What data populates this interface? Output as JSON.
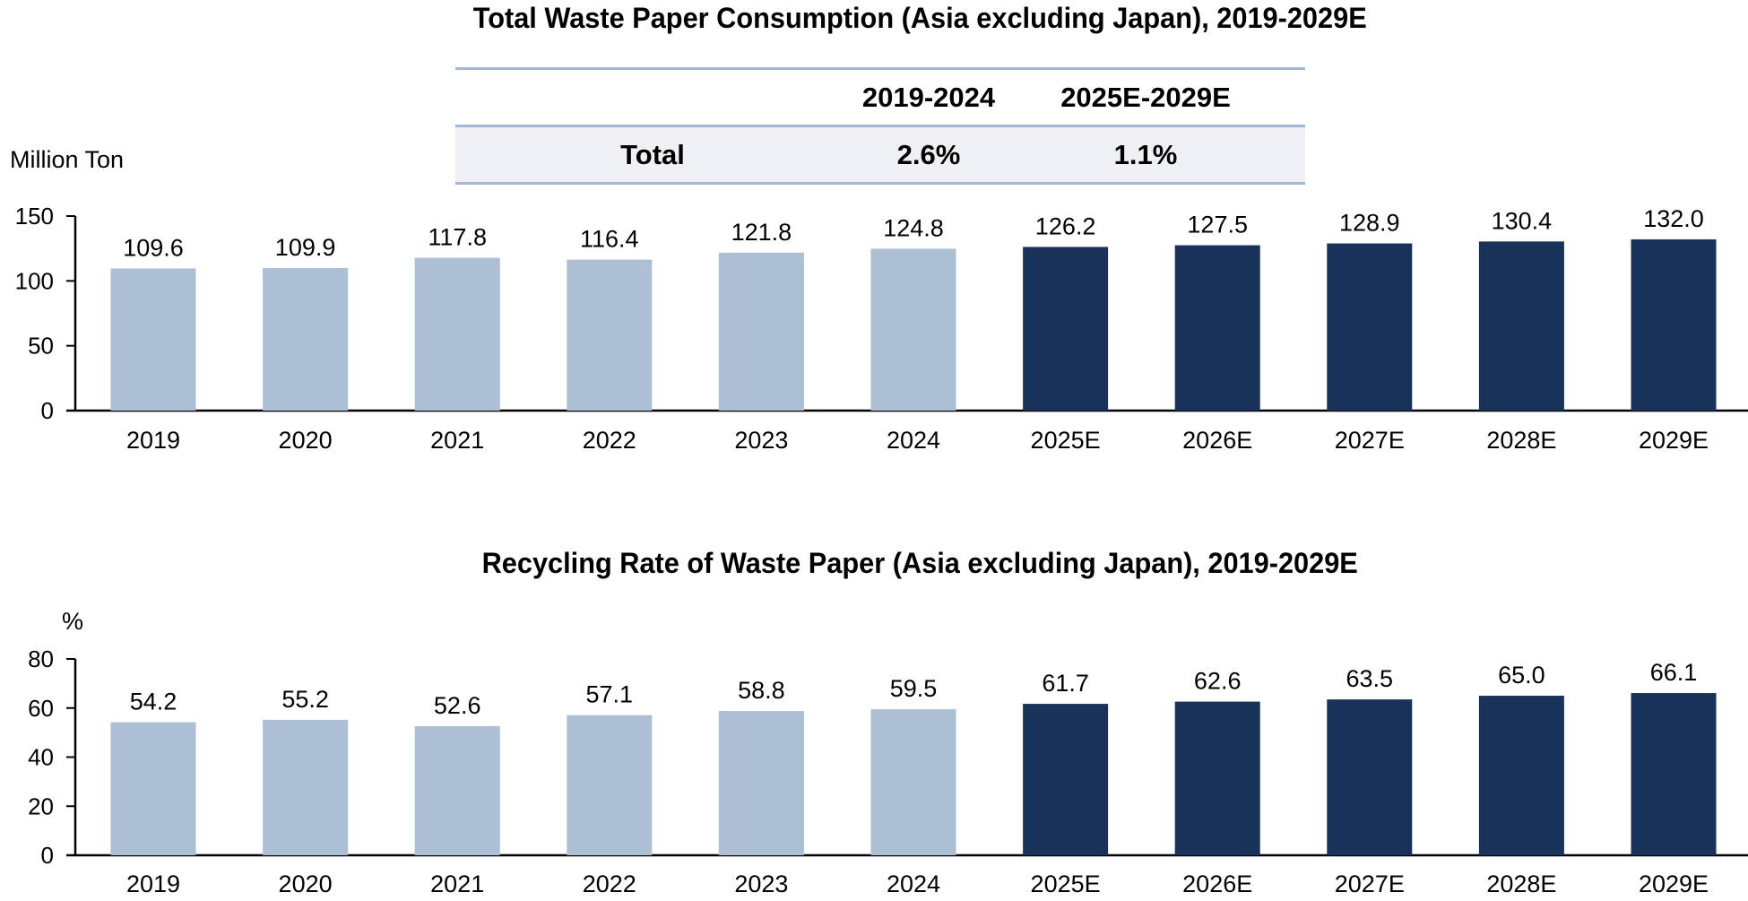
{
  "colors": {
    "historical": "#adbfd4",
    "forecast": "#19325a",
    "axis": "#000000",
    "table_line": "#a3b8d4",
    "table_shade": "#eef0f4"
  },
  "cagr_table": {
    "headers": [
      "",
      "2019-2024",
      "2025E-2029E"
    ],
    "rows": [
      {
        "label": "Total",
        "values": [
          "2.6%",
          "1.1%"
        ]
      }
    ]
  },
  "chart_data": [
    {
      "type": "bar",
      "title": "Total Waste Paper Consumption (Asia excluding Japan), 2019-2029E",
      "xlabel": "",
      "ylabel": "Million Ton",
      "ylim": [
        0,
        150
      ],
      "yticks": [
        0,
        50,
        100,
        150
      ],
      "grid": false,
      "categories": [
        "2019",
        "2020",
        "2021",
        "2022",
        "2023",
        "2024",
        "2025E",
        "2026E",
        "2027E",
        "2028E",
        "2029E"
      ],
      "values": [
        109.6,
        109.9,
        117.8,
        116.4,
        121.8,
        124.8,
        126.2,
        127.5,
        128.9,
        130.4,
        132.0
      ],
      "labels": [
        "109.6",
        "109.9",
        "117.8",
        "116.4",
        "121.8",
        "124.8",
        "126.2",
        "127.5",
        "128.9",
        "130.4",
        "132.0"
      ],
      "forecast_from_index": 6
    },
    {
      "type": "bar",
      "title": "Recycling Rate of Waste Paper (Asia excluding Japan), 2019-2029E",
      "xlabel": "",
      "ylabel": "%",
      "ylim": [
        0,
        80
      ],
      "yticks": [
        0,
        20,
        40,
        60,
        80
      ],
      "grid": false,
      "categories": [
        "2019",
        "2020",
        "2021",
        "2022",
        "2023",
        "2024",
        "2025E",
        "2026E",
        "2027E",
        "2028E",
        "2029E"
      ],
      "values": [
        54.2,
        55.2,
        52.6,
        57.1,
        58.8,
        59.5,
        61.7,
        62.6,
        63.5,
        65.0,
        66.1
      ],
      "labels": [
        "54.2",
        "55.2",
        "52.6",
        "57.1",
        "58.8",
        "59.5",
        "61.7",
        "62.6",
        "63.5",
        "65.0",
        "66.1"
      ],
      "forecast_from_index": 6
    }
  ]
}
